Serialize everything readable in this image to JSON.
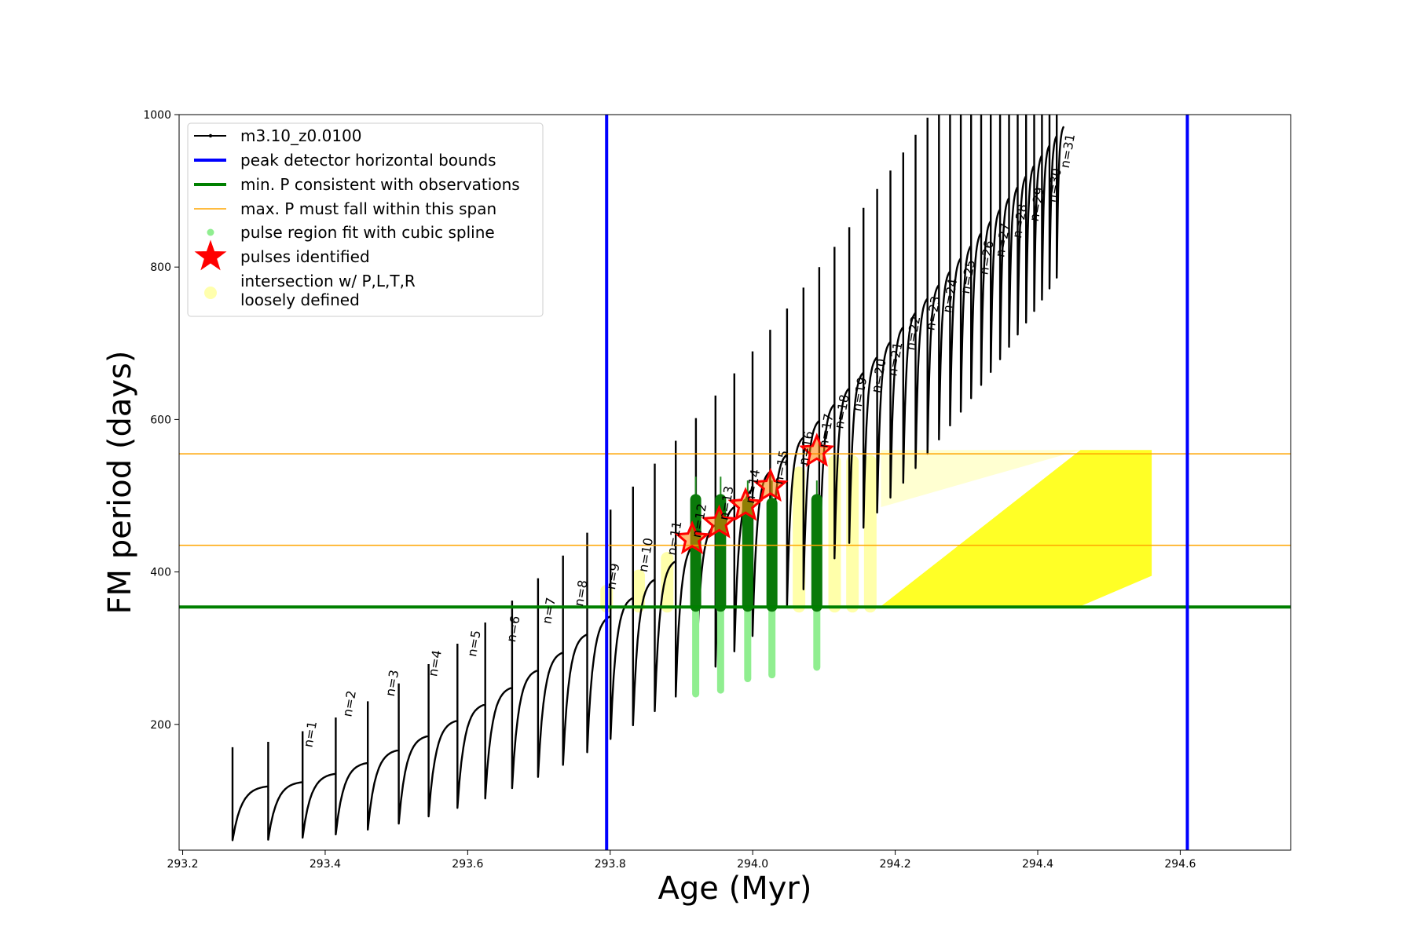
{
  "chart_data": {
    "type": "line",
    "xlabel": "Age (Myr)",
    "ylabel": "FM period (days)",
    "xlim": [
      293.195,
      294.755
    ],
    "ylim": [
      35,
      1000
    ],
    "xticks": [
      293.2,
      293.4,
      293.6,
      293.8,
      294.0,
      294.2,
      294.4,
      294.6
    ],
    "xtick_labels": [
      "293.2",
      "293.4",
      "293.6",
      "293.8",
      "294.0",
      "294.2",
      "294.4",
      "294.6"
    ],
    "yticks": [
      200,
      400,
      600,
      800,
      1000
    ],
    "ytick_labels": [
      "200",
      "400",
      "600",
      "800",
      "1000"
    ],
    "grid": false,
    "legend_position": "upper-left",
    "legend": [
      {
        "label": "m3.10_z0.0100",
        "marker": "line-dot",
        "color": "#000000"
      },
      {
        "label": "peak detector horizontal bounds",
        "marker": "line",
        "color": "#0000ff"
      },
      {
        "label": "min. P consistent with observations",
        "marker": "line",
        "color": "#008000"
      },
      {
        "label": "max. P must fall within this span",
        "marker": "thin-line",
        "color": "#ffa500"
      },
      {
        "label": "pulse region fit with cubic spline",
        "marker": "dot",
        "color": "#90ee90"
      },
      {
        "label": "pulses identified",
        "marker": "star",
        "color": "#ff0000"
      },
      {
        "label": "intersection w/ P,L,T,R",
        "label2": "loosely defined",
        "marker": "circle",
        "color": "#ffff99"
      }
    ],
    "series_model": {
      "name": "m3.10_z0.0100",
      "color": "#000000",
      "first_pulse_age": 293.27,
      "pulse_interval_start": 0.05,
      "pulse_interval_end": 0.0095,
      "pulse_count": 48,
      "baseline_min_start": 48,
      "baseline_min_end": 800,
      "baseline_max_start": 120,
      "baseline_max_end": 1000
    },
    "blue_vertical_lines": [
      293.795,
      294.61
    ],
    "green_horizontal_line": 354,
    "orange_horizontal_lines": [
      435,
      555
    ],
    "pulse_labels": [
      {
        "text": "n=1",
        "x": 293.375,
        "y": 165
      },
      {
        "text": "n=2",
        "x": 293.43,
        "y": 205
      },
      {
        "text": "n=3",
        "x": 293.49,
        "y": 232
      },
      {
        "text": "n=4",
        "x": 293.55,
        "y": 258
      },
      {
        "text": "n=5",
        "x": 293.605,
        "y": 284
      },
      {
        "text": "n=6",
        "x": 293.66,
        "y": 303
      },
      {
        "text": "n=7",
        "x": 293.71,
        "y": 327
      },
      {
        "text": "n=8",
        "x": 293.755,
        "y": 350
      },
      {
        "text": "n=9",
        "x": 293.8,
        "y": 372
      },
      {
        "text": "n=10",
        "x": 293.845,
        "y": 395
      },
      {
        "text": "n=11",
        "x": 293.885,
        "y": 417
      },
      {
        "text": "n=12",
        "x": 293.92,
        "y": 440
      },
      {
        "text": "n=13",
        "x": 293.958,
        "y": 463
      },
      {
        "text": "n=14",
        "x": 293.995,
        "y": 485
      },
      {
        "text": "n=15",
        "x": 294.035,
        "y": 510
      },
      {
        "text": "n=16",
        "x": 294.07,
        "y": 535
      },
      {
        "text": "n=17",
        "x": 294.098,
        "y": 558
      },
      {
        "text": "n=18",
        "x": 294.12,
        "y": 583
      },
      {
        "text": "n=19",
        "x": 294.145,
        "y": 606
      },
      {
        "text": "n=20",
        "x": 294.172,
        "y": 630
      },
      {
        "text": "n=21",
        "x": 294.195,
        "y": 652
      },
      {
        "text": "n=22",
        "x": 294.22,
        "y": 686
      },
      {
        "text": "n=23",
        "x": 294.248,
        "y": 712
      },
      {
        "text": "n=24",
        "x": 294.272,
        "y": 735
      },
      {
        "text": "n=25",
        "x": 294.297,
        "y": 760
      },
      {
        "text": "n=26",
        "x": 294.323,
        "y": 785
      },
      {
        "text": "n=27",
        "x": 294.346,
        "y": 808
      },
      {
        "text": "n=28",
        "x": 294.37,
        "y": 833
      },
      {
        "text": "n=29",
        "x": 294.394,
        "y": 855
      },
      {
        "text": "n=30",
        "x": 294.418,
        "y": 880
      },
      {
        "text": "n=31",
        "x": 294.437,
        "y": 925
      }
    ],
    "pulses_identified": [
      {
        "x": 293.915,
        "y": 443
      },
      {
        "x": 293.953,
        "y": 464
      },
      {
        "x": 293.99,
        "y": 487
      },
      {
        "x": 294.025,
        "y": 512
      },
      {
        "x": 294.09,
        "y": 558
      }
    ],
    "green_pulse_columns": [
      {
        "x": 293.92,
        "fit_low": 240,
        "fit_high": 525,
        "thick_low": 355,
        "thick_high": 495
      },
      {
        "x": 293.955,
        "fit_low": 245,
        "fit_high": 525,
        "thick_low": 355,
        "thick_high": 495
      },
      {
        "x": 293.993,
        "fit_low": 260,
        "fit_high": 520,
        "thick_low": 355,
        "thick_high": 490
      },
      {
        "x": 294.027,
        "fit_low": 265,
        "fit_high": 520,
        "thick_low": 355,
        "thick_high": 490
      },
      {
        "x": 294.09,
        "fit_low": 275,
        "fit_high": 520,
        "thick_low": 355,
        "thick_high": 495
      }
    ],
    "yellow_columns": [
      {
        "x": 293.795,
        "low": 355,
        "high": 375
      },
      {
        "x": 293.84,
        "low": 355,
        "high": 395
      },
      {
        "x": 293.88,
        "low": 355,
        "high": 418
      },
      {
        "x": 294.065,
        "low": 355,
        "high": 530
      },
      {
        "x": 294.115,
        "low": 355,
        "high": 545
      },
      {
        "x": 294.14,
        "low": 355,
        "high": 545
      },
      {
        "x": 294.165,
        "low": 355,
        "high": 545
      }
    ],
    "yellow_band": {
      "x_start": 294.18,
      "x_peak": 294.46,
      "x_end": 294.56,
      "low": 355,
      "high": 560
    }
  }
}
